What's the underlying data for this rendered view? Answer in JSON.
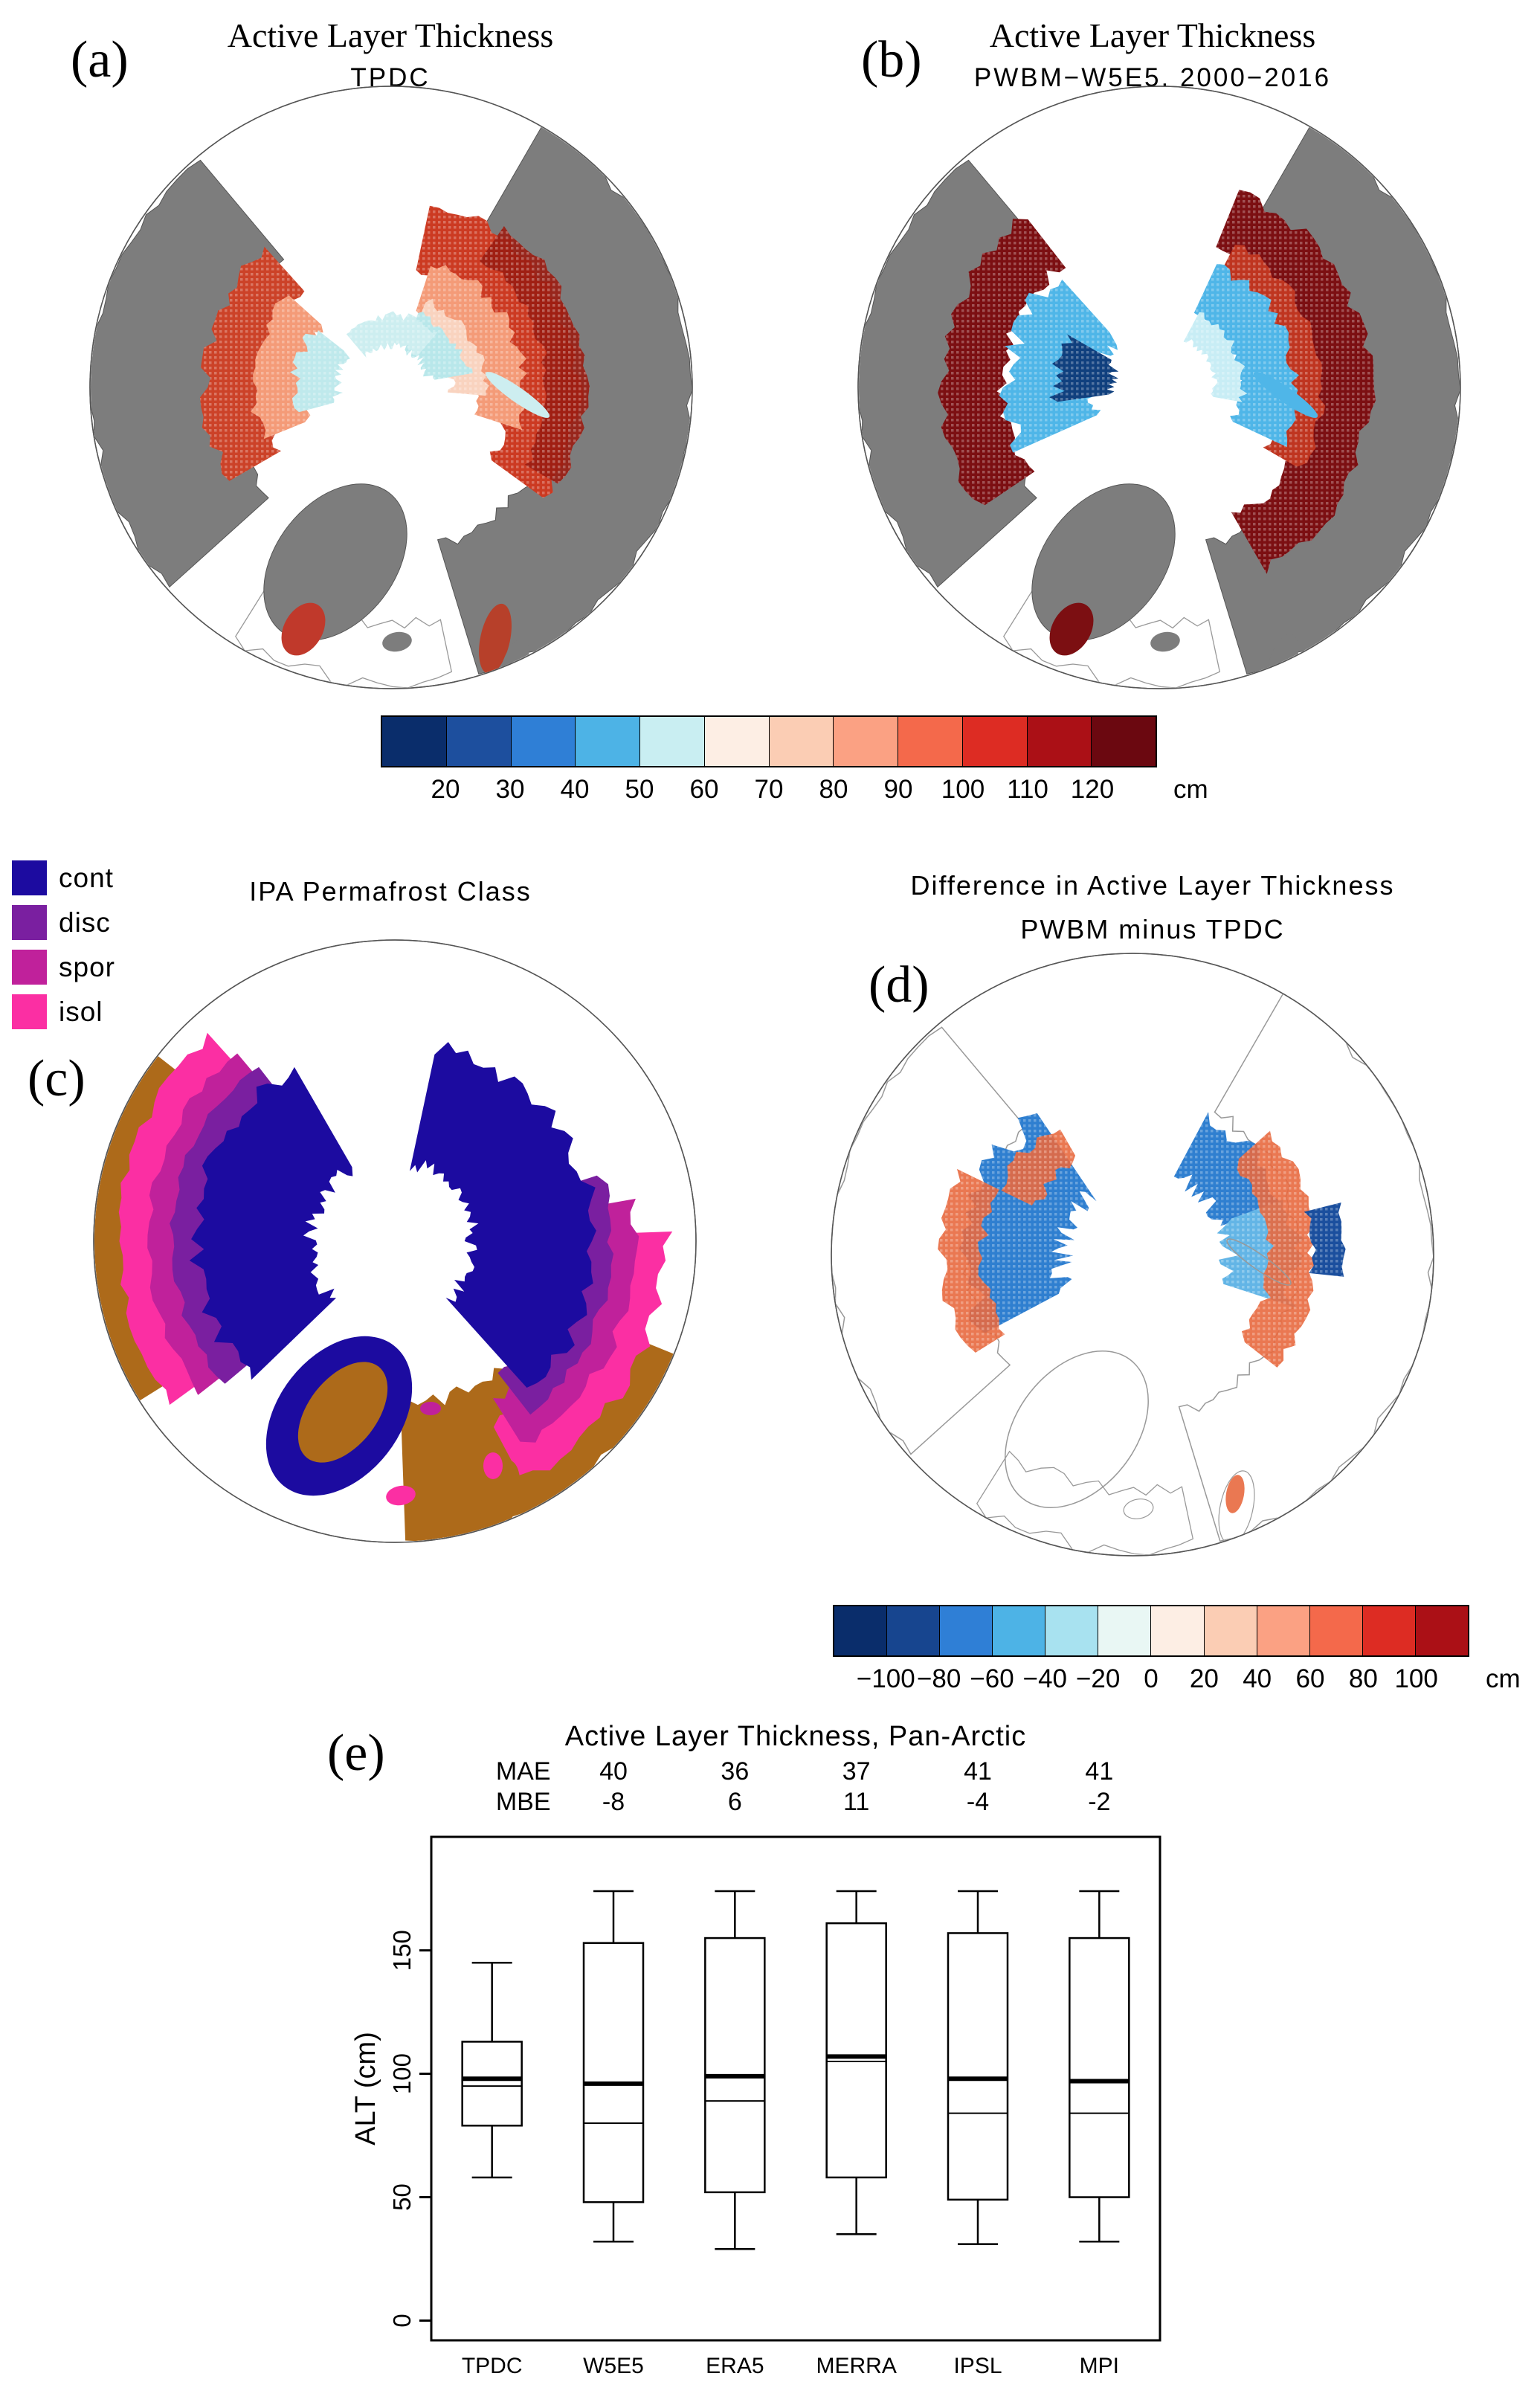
{
  "panels": {
    "a": {
      "label": "(a)",
      "title_line1": "Active Layer Thickness",
      "title_line2": "TPDC"
    },
    "b": {
      "label": "(b)",
      "title_line1": "Active Layer Thickness",
      "title_line2": "PWBM−W5E5, 2000−2016"
    },
    "c": {
      "label": "(c)",
      "title": "IPA Permafrost Class",
      "legend": [
        {
          "label": "cont",
          "color": "#1c0ba0"
        },
        {
          "label": "disc",
          "color": "#7a1fa0"
        },
        {
          "label": "spor",
          "color": "#c0219b"
        },
        {
          "label": "isol",
          "color": "#fb2fa3"
        }
      ]
    },
    "d": {
      "label": "(d)",
      "title_line1": "Difference in Active Layer Thickness",
      "title_line2": "PWBM minus TPDC"
    },
    "e": {
      "label": "(e)"
    }
  },
  "colorbar_alt": {
    "tick_labels": [
      "20",
      "30",
      "40",
      "50",
      "60",
      "70",
      "80",
      "90",
      "100",
      "110",
      "120"
    ],
    "unit": "cm",
    "colors": [
      "#0a2d6b",
      "#1d4f9e",
      "#2f7fd6",
      "#4db3e6",
      "#c9eef2",
      "#fdeee4",
      "#fbcdb4",
      "#fba183",
      "#f4694b",
      "#dd2c23",
      "#ab1016",
      "#6b0810"
    ]
  },
  "colorbar_diff": {
    "tick_labels": [
      "−100",
      "−80",
      "−60",
      "−40",
      "−20",
      "0",
      "20",
      "40",
      "60",
      "80",
      "100"
    ],
    "unit": "cm",
    "colors": [
      "#0a2d6b",
      "#17458f",
      "#2f7fd6",
      "#4db3e6",
      "#a8e2f0",
      "#e9f7f4",
      "#fdeee4",
      "#fbcdb4",
      "#fba183",
      "#f4694b",
      "#dd2c23",
      "#ab1016"
    ]
  },
  "chart_data": [
    {
      "type": "map",
      "panel": "a",
      "title": "Active Layer Thickness",
      "subtitle": "TPDC",
      "units": "cm",
      "colorbar_ticks": [
        20,
        30,
        40,
        50,
        60,
        70,
        80,
        90,
        100,
        110,
        120
      ]
    },
    {
      "type": "map",
      "panel": "b",
      "title": "Active Layer Thickness",
      "subtitle": "PWBM−W5E5, 2000−2016",
      "units": "cm",
      "colorbar_ticks": [
        20,
        30,
        40,
        50,
        60,
        70,
        80,
        90,
        100,
        110,
        120
      ]
    },
    {
      "type": "map",
      "panel": "c",
      "title": "IPA Permafrost Class",
      "classes": [
        "cont",
        "disc",
        "spor",
        "isol"
      ]
    },
    {
      "type": "map",
      "panel": "d",
      "title": "Difference in Active Layer Thickness",
      "subtitle": "PWBM minus TPDC",
      "units": "cm",
      "colorbar_ticks": [
        -100,
        -80,
        -60,
        -40,
        -20,
        0,
        20,
        40,
        60,
        80,
        100
      ]
    },
    {
      "type": "boxplot",
      "panel": "e",
      "title": "Active Layer Thickness, Pan-Arctic",
      "ylabel": "ALT (cm)",
      "yticks": [
        0,
        50,
        100,
        150
      ],
      "ylim": [
        0,
        190
      ],
      "categories": [
        "TPDC",
        "W5E5",
        "ERA5",
        "MERRA",
        "IPSL",
        "MPI"
      ],
      "stats_rows": [
        {
          "label": "MAE",
          "values": [
            null,
            40,
            36,
            37,
            41,
            41
          ]
        },
        {
          "label": "MBE",
          "values": [
            null,
            -8,
            6,
            11,
            -4,
            -2
          ]
        }
      ],
      "boxes": [
        {
          "name": "TPDC",
          "whisker_low": 58,
          "q1": 79,
          "median": 95,
          "mean": 98,
          "q3": 113,
          "whisker_high": 145
        },
        {
          "name": "W5E5",
          "whisker_low": 32,
          "q1": 48,
          "median": 80,
          "mean": 96,
          "q3": 153,
          "whisker_high": 174
        },
        {
          "name": "ERA5",
          "whisker_low": 29,
          "q1": 52,
          "median": 89,
          "mean": 99,
          "q3": 155,
          "whisker_high": 174
        },
        {
          "name": "MERRA",
          "whisker_low": 35,
          "q1": 58,
          "median": 105,
          "mean": 107,
          "q3": 161,
          "whisker_high": 174
        },
        {
          "name": "IPSL",
          "whisker_low": 31,
          "q1": 49,
          "median": 84,
          "mean": 98,
          "q3": 157,
          "whisker_high": 174
        },
        {
          "name": "MPI",
          "whisker_low": 32,
          "q1": 50,
          "median": 84,
          "mean": 97,
          "q3": 155,
          "whisker_high": 174
        }
      ]
    }
  ]
}
